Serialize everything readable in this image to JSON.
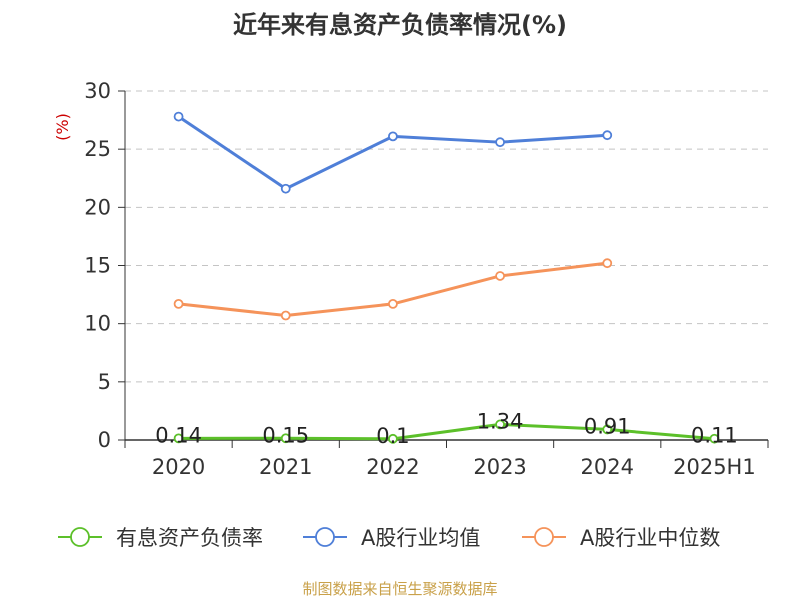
{
  "chart_data": {
    "type": "line",
    "title": "近年来有息资产负债率情况(%)",
    "ylabel": "(%)",
    "categories": [
      "2020",
      "2021",
      "2022",
      "2023",
      "2024",
      "2025H1"
    ],
    "ylim": [
      0,
      30
    ],
    "yticks": [
      0,
      5,
      10,
      15,
      20,
      25,
      30
    ],
    "grid": true,
    "legend_position": "bottom",
    "series": [
      {
        "name": "有息资产负债率",
        "color": "#5cc02a",
        "values": [
          0.14,
          0.15,
          0.1,
          1.34,
          0.91,
          0.11
        ],
        "data_labels": [
          "0.14",
          "0.15",
          "0.1",
          "1.34",
          "0.91",
          "0.11"
        ]
      },
      {
        "name": "A股行业均值",
        "color": "#4f7fd8",
        "values": [
          27.8,
          21.6,
          26.1,
          25.6,
          26.2,
          null
        ]
      },
      {
        "name": "A股行业中位数",
        "color": "#f5935a",
        "values": [
          11.7,
          10.7,
          11.7,
          14.1,
          15.2,
          null
        ]
      }
    ]
  },
  "source": "制图数据来自恒生聚源数据库"
}
